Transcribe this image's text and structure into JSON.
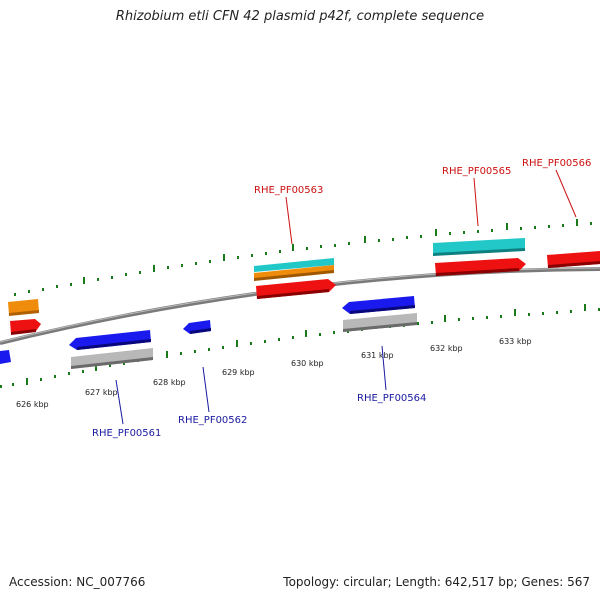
{
  "title": "Rhizobium etli CFN 42 plasmid p42f, complete sequence",
  "footer": {
    "accession": "Accession: NC_007766",
    "summary": "Topology: circular; Length: 642,517 bp; Genes: 567"
  },
  "colors": {
    "backbone": "#8a8a8a",
    "ticks": "#1a7a1a",
    "forward_cds": "#ee1111",
    "reverse_cds": "#1a1aee",
    "rna": "#22c8c8",
    "gene_orange": "#f08c0c",
    "gray": "#b8b8b8",
    "label_forward": "#cc1111",
    "label_reverse": "#1a1aa0"
  },
  "scale_labels": [
    "626 kbp",
    "627 kbp",
    "628 kbp",
    "629 kbp",
    "630 kbp",
    "631 kbp",
    "632 kbp",
    "633 kbp"
  ],
  "gene_labels": {
    "forward": [
      "RHE_PF00563",
      "RHE_PF00565",
      "RHE_PF00566"
    ],
    "reverse": [
      "RHE_PF00561",
      "RHE_PF00562",
      "RHE_PF00564"
    ]
  }
}
